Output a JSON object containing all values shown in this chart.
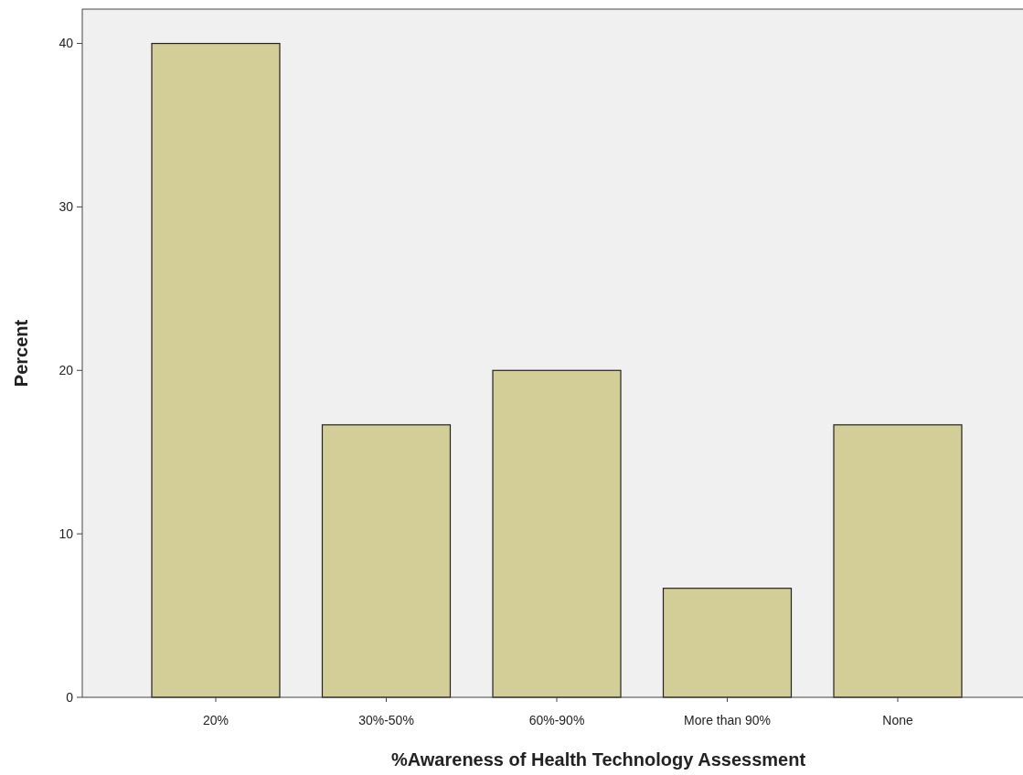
{
  "chart_data": {
    "type": "bar",
    "xlabel": "%Awareness of Health Technology Assessment",
    "ylabel": "Percent",
    "categories": [
      "20%",
      "30%-50%",
      "60%-90%",
      "More than 90%",
      "None"
    ],
    "values": [
      40,
      16.67,
      20,
      6.67,
      16.67
    ],
    "color": "#d3ce97",
    "ylim": [
      0,
      42.1
    ],
    "yticks": [
      0,
      10,
      20,
      30,
      40
    ],
    "grid": false
  }
}
